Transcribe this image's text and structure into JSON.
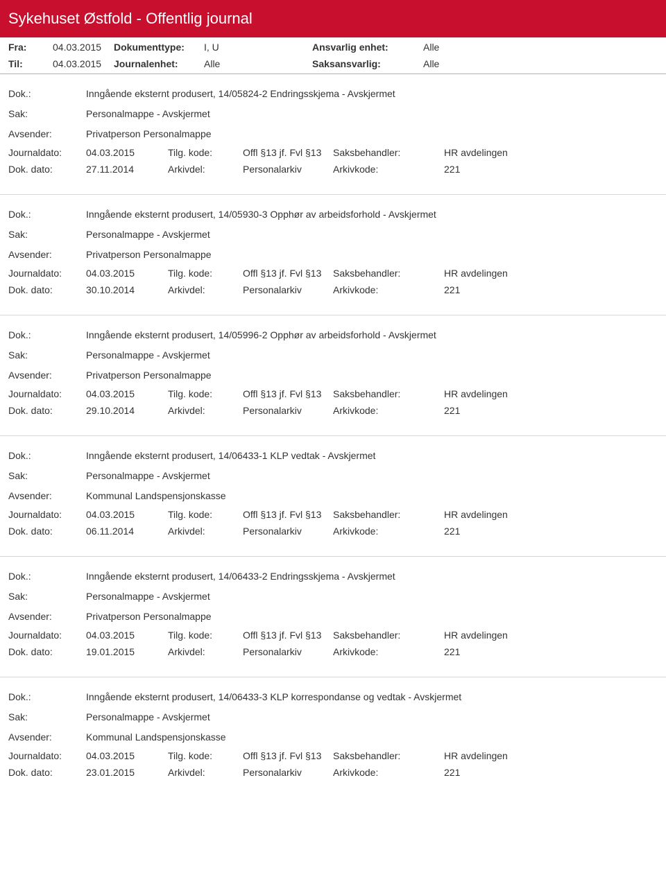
{
  "header": {
    "title": "Sykehuset Østfold - Offentlig journal"
  },
  "meta": {
    "fra_label": "Fra:",
    "fra_value": "04.03.2015",
    "til_label": "Til:",
    "til_value": "04.03.2015",
    "dokumenttype_label": "Dokumenttype:",
    "dokumenttype_value": "I, U",
    "journalenhet_label": "Journalenhet:",
    "journalenhet_value": "Alle",
    "ansvarlig_label": "Ansvarlig enhet:",
    "ansvarlig_value": "Alle",
    "saksansvarlig_label": "Saksansvarlig:",
    "saksansvarlig_value": "Alle"
  },
  "labels": {
    "dok": "Dok.:",
    "sak": "Sak:",
    "avsender": "Avsender:",
    "journaldato": "Journaldato:",
    "dokdato": "Dok. dato:",
    "tilgkode": "Tilg. kode:",
    "arkivdel": "Arkivdel:",
    "saksbehandler": "Saksbehandler:",
    "arkivkode": "Arkivkode:"
  },
  "entries": [
    {
      "dok": "Inngående eksternt produsert, 14/05824-2 Endringsskjema - Avskjermet",
      "sak": "Personalmappe - Avskjermet",
      "avsender": "Privatperson Personalmappe",
      "journaldato": "04.03.2015",
      "tilgkode": "Offl §13 jf. Fvl §13",
      "saksbehandler": "HR avdelingen",
      "dokdato": "27.11.2014",
      "arkivdel": "Personalarkiv",
      "arkivkode": "221"
    },
    {
      "dok": "Inngående eksternt produsert, 14/05930-3 Opphør av arbeidsforhold - Avskjermet",
      "sak": "Personalmappe - Avskjermet",
      "avsender": "Privatperson Personalmappe",
      "journaldato": "04.03.2015",
      "tilgkode": "Offl §13 jf. Fvl §13",
      "saksbehandler": "HR avdelingen",
      "dokdato": "30.10.2014",
      "arkivdel": "Personalarkiv",
      "arkivkode": "221"
    },
    {
      "dok": "Inngående eksternt produsert, 14/05996-2 Opphør av arbeidsforhold - Avskjermet",
      "sak": "Personalmappe - Avskjermet",
      "avsender": "Privatperson Personalmappe",
      "journaldato": "04.03.2015",
      "tilgkode": "Offl §13 jf. Fvl §13",
      "saksbehandler": "HR avdelingen",
      "dokdato": "29.10.2014",
      "arkivdel": "Personalarkiv",
      "arkivkode": "221"
    },
    {
      "dok": "Inngående eksternt produsert, 14/06433-1 KLP vedtak - Avskjermet",
      "sak": "Personalmappe - Avskjermet",
      "avsender": "Kommunal Landspensjonskasse",
      "journaldato": "04.03.2015",
      "tilgkode": "Offl §13 jf. Fvl §13",
      "saksbehandler": "HR avdelingen",
      "dokdato": "06.11.2014",
      "arkivdel": "Personalarkiv",
      "arkivkode": "221"
    },
    {
      "dok": "Inngående eksternt produsert, 14/06433-2 Endringsskjema - Avskjermet",
      "sak": "Personalmappe - Avskjermet",
      "avsender": "Privatperson Personalmappe",
      "journaldato": "04.03.2015",
      "tilgkode": "Offl §13 jf. Fvl §13",
      "saksbehandler": "HR avdelingen",
      "dokdato": "19.01.2015",
      "arkivdel": "Personalarkiv",
      "arkivkode": "221"
    },
    {
      "dok": "Inngående eksternt produsert, 14/06433-3 KLP korrespondanse og vedtak - Avskjermet",
      "sak": "Personalmappe - Avskjermet",
      "avsender": "Kommunal Landspensjonskasse",
      "journaldato": "04.03.2015",
      "tilgkode": "Offl §13 jf. Fvl §13",
      "saksbehandler": "HR avdelingen",
      "dokdato": "23.01.2015",
      "arkivdel": "Personalarkiv",
      "arkivkode": "221"
    }
  ]
}
